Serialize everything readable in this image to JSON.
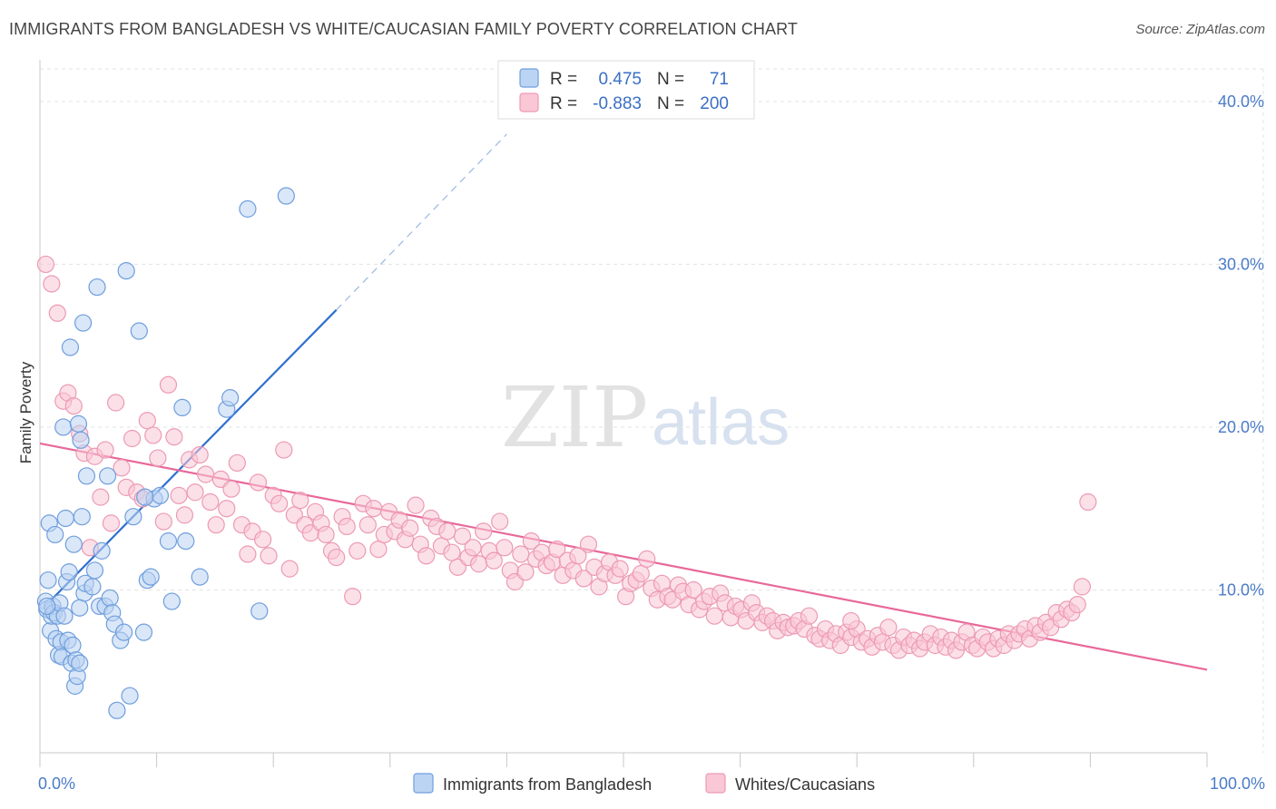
{
  "title": "IMMIGRANTS FROM BANGLADESH VS WHITE/CAUCASIAN FAMILY POVERTY CORRELATION CHART",
  "source": "Source: ZipAtlas.com",
  "watermark": {
    "part1": "ZIP",
    "part2": "atlas"
  },
  "colors": {
    "blue_fill": "#bcd4f3",
    "blue_stroke": "#6e9edd",
    "blue_line": "#2f6fcf",
    "pink_fill": "#f9c7d6",
    "pink_stroke": "#ec9ab4",
    "pink_line": "#e8689a",
    "grid": "#e3e3e3",
    "tick_text": "#4a7bc8"
  },
  "stats": {
    "r_label": "R =",
    "n_label": "N =",
    "blue": {
      "r": "0.475",
      "n": "71"
    },
    "pink": {
      "r": "-0.883",
      "n": "200"
    }
  },
  "chart_data": {
    "type": "scatter",
    "title": "IMMIGRANTS FROM BANGLADESH VS WHITE/CAUCASIAN FAMILY POVERTY CORRELATION CHART",
    "xlabel": "",
    "ylabel": "Family Poverty",
    "xlim": [
      0,
      100
    ],
    "ylim": [
      0,
      42
    ],
    "x_tick_labels": [
      "0.0%",
      "100.0%"
    ],
    "y_ticks": [
      10,
      20,
      30,
      40
    ],
    "y_tick_labels": [
      "10.0%",
      "20.0%",
      "30.0%",
      "40.0%"
    ],
    "grid": true,
    "legend_position": "bottom",
    "series": [
      {
        "name": "Immigrants from Bangladesh",
        "color": "#6e9edd",
        "trend": {
          "x": [
            0.3,
            25.4
          ],
          "y": [
            8.9,
            27.2
          ],
          "dashed_to": [
            40.0,
            38.0
          ]
        },
        "points": [
          [
            0.5,
            9.3
          ],
          [
            0.6,
            8.8
          ],
          [
            0.7,
            10.6
          ],
          [
            0.8,
            14.1
          ],
          [
            0.9,
            7.5
          ],
          [
            1.0,
            8.4
          ],
          [
            1.1,
            9.0
          ],
          [
            1.2,
            8.6
          ],
          [
            1.3,
            13.4
          ],
          [
            1.4,
            7.0
          ],
          [
            1.5,
            8.4
          ],
          [
            1.6,
            6.0
          ],
          [
            1.7,
            9.2
          ],
          [
            1.8,
            6.8
          ],
          [
            1.9,
            5.9
          ],
          [
            2.0,
            20.0
          ],
          [
            2.1,
            8.4
          ],
          [
            2.2,
            14.4
          ],
          [
            2.3,
            10.5
          ],
          [
            2.4,
            6.9
          ],
          [
            2.5,
            11.1
          ],
          [
            2.6,
            24.9
          ],
          [
            2.7,
            5.5
          ],
          [
            2.8,
            6.6
          ],
          [
            2.9,
            12.8
          ],
          [
            3.0,
            4.1
          ],
          [
            3.1,
            5.7
          ],
          [
            3.2,
            4.7
          ],
          [
            3.3,
            20.2
          ],
          [
            3.4,
            5.5
          ],
          [
            3.5,
            19.2
          ],
          [
            3.6,
            14.5
          ],
          [
            3.7,
            26.4
          ],
          [
            3.8,
            9.8
          ],
          [
            3.9,
            10.4
          ],
          [
            4.0,
            17.0
          ],
          [
            4.5,
            10.2
          ],
          [
            4.7,
            11.2
          ],
          [
            4.9,
            28.6
          ],
          [
            5.1,
            9.0
          ],
          [
            5.3,
            12.4
          ],
          [
            5.6,
            9.0
          ],
          [
            5.8,
            17.0
          ],
          [
            6.0,
            9.5
          ],
          [
            6.2,
            8.6
          ],
          [
            6.4,
            7.9
          ],
          [
            6.6,
            2.6
          ],
          [
            6.9,
            6.9
          ],
          [
            7.2,
            7.4
          ],
          [
            7.4,
            29.6
          ],
          [
            7.7,
            3.5
          ],
          [
            8.0,
            14.5
          ],
          [
            8.5,
            25.9
          ],
          [
            8.9,
            7.4
          ],
          [
            9.2,
            10.6
          ],
          [
            9.5,
            10.8
          ],
          [
            9.8,
            15.6
          ],
          [
            10.3,
            15.8
          ],
          [
            11.0,
            13.0
          ],
          [
            11.3,
            9.3
          ],
          [
            12.2,
            21.2
          ],
          [
            12.5,
            13.0
          ],
          [
            13.7,
            10.8
          ],
          [
            16.0,
            21.1
          ],
          [
            16.3,
            21.8
          ],
          [
            17.8,
            33.4
          ],
          [
            18.8,
            8.7
          ],
          [
            21.1,
            34.2
          ],
          [
            9.0,
            15.7
          ],
          [
            3.4,
            8.9
          ],
          [
            0.6,
            9.0
          ]
        ]
      },
      {
        "name": "Whites/Caucasians",
        "color": "#ec9ab4",
        "trend": {
          "x": [
            0.0,
            100.0
          ],
          "y": [
            19.0,
            5.1
          ]
        },
        "points": [
          [
            0.5,
            30.0
          ],
          [
            1.0,
            28.8
          ],
          [
            1.5,
            27.0
          ],
          [
            2.0,
            21.6
          ],
          [
            2.4,
            22.1
          ],
          [
            2.9,
            21.3
          ],
          [
            3.4,
            19.6
          ],
          [
            3.8,
            18.4
          ],
          [
            4.3,
            12.6
          ],
          [
            4.7,
            18.2
          ],
          [
            5.2,
            15.7
          ],
          [
            5.6,
            18.6
          ],
          [
            6.1,
            14.1
          ],
          [
            6.5,
            21.5
          ],
          [
            7.0,
            17.5
          ],
          [
            7.4,
            16.3
          ],
          [
            7.9,
            19.3
          ],
          [
            8.3,
            16.0
          ],
          [
            8.8,
            15.6
          ],
          [
            9.2,
            20.4
          ],
          [
            9.7,
            19.5
          ],
          [
            10.1,
            18.1
          ],
          [
            10.6,
            14.2
          ],
          [
            11.0,
            22.6
          ],
          [
            11.5,
            19.4
          ],
          [
            11.9,
            15.8
          ],
          [
            12.4,
            14.6
          ],
          [
            12.8,
            18.0
          ],
          [
            13.3,
            16.0
          ],
          [
            13.7,
            18.3
          ],
          [
            14.2,
            17.1
          ],
          [
            14.6,
            15.4
          ],
          [
            15.1,
            14.0
          ],
          [
            15.5,
            16.8
          ],
          [
            16.0,
            15.0
          ],
          [
            16.4,
            16.2
          ],
          [
            16.9,
            17.8
          ],
          [
            17.3,
            14.0
          ],
          [
            17.8,
            12.2
          ],
          [
            18.2,
            13.6
          ],
          [
            18.7,
            16.6
          ],
          [
            19.1,
            13.1
          ],
          [
            19.6,
            12.1
          ],
          [
            20.0,
            15.8
          ],
          [
            20.5,
            15.3
          ],
          [
            20.9,
            18.6
          ],
          [
            21.4,
            11.3
          ],
          [
            21.8,
            14.6
          ],
          [
            22.3,
            15.5
          ],
          [
            22.7,
            14.0
          ],
          [
            23.2,
            13.5
          ],
          [
            23.6,
            14.8
          ],
          [
            24.1,
            14.1
          ],
          [
            24.5,
            13.4
          ],
          [
            25.0,
            12.4
          ],
          [
            25.4,
            12.0
          ],
          [
            25.9,
            14.5
          ],
          [
            26.3,
            13.9
          ],
          [
            26.8,
            9.6
          ],
          [
            27.2,
            12.4
          ],
          [
            27.7,
            15.3
          ],
          [
            28.1,
            14.0
          ],
          [
            28.6,
            15.0
          ],
          [
            29.0,
            12.5
          ],
          [
            29.5,
            13.4
          ],
          [
            29.9,
            14.8
          ],
          [
            30.4,
            13.6
          ],
          [
            30.8,
            14.3
          ],
          [
            31.3,
            13.1
          ],
          [
            31.7,
            13.8
          ],
          [
            32.2,
            15.2
          ],
          [
            32.6,
            12.8
          ],
          [
            33.1,
            12.1
          ],
          [
            33.5,
            14.4
          ],
          [
            34.0,
            13.9
          ],
          [
            34.4,
            12.7
          ],
          [
            34.9,
            13.6
          ],
          [
            35.3,
            12.3
          ],
          [
            35.8,
            11.4
          ],
          [
            36.2,
            13.3
          ],
          [
            36.7,
            12.0
          ],
          [
            37.1,
            12.6
          ],
          [
            37.6,
            11.6
          ],
          [
            38.0,
            13.6
          ],
          [
            38.5,
            12.4
          ],
          [
            38.9,
            11.8
          ],
          [
            39.4,
            14.2
          ],
          [
            39.8,
            12.6
          ],
          [
            40.3,
            11.2
          ],
          [
            40.7,
            10.5
          ],
          [
            41.2,
            12.2
          ],
          [
            41.6,
            11.1
          ],
          [
            42.1,
            13.0
          ],
          [
            42.5,
            11.9
          ],
          [
            43.0,
            12.3
          ],
          [
            43.4,
            11.5
          ],
          [
            43.9,
            11.7
          ],
          [
            44.3,
            12.5
          ],
          [
            44.8,
            10.9
          ],
          [
            45.2,
            11.8
          ],
          [
            45.7,
            11.2
          ],
          [
            46.1,
            12.1
          ],
          [
            46.6,
            10.7
          ],
          [
            47.0,
            12.8
          ],
          [
            47.5,
            11.4
          ],
          [
            47.9,
            10.2
          ],
          [
            48.4,
            11.0
          ],
          [
            48.8,
            11.7
          ],
          [
            49.3,
            10.9
          ],
          [
            49.7,
            11.3
          ],
          [
            50.2,
            9.6
          ],
          [
            50.6,
            10.4
          ],
          [
            51.1,
            10.6
          ],
          [
            51.5,
            11.0
          ],
          [
            52.0,
            11.9
          ],
          [
            52.4,
            10.1
          ],
          [
            52.9,
            9.4
          ],
          [
            53.3,
            10.4
          ],
          [
            53.8,
            9.6
          ],
          [
            54.2,
            9.4
          ],
          [
            54.7,
            10.3
          ],
          [
            55.1,
            9.9
          ],
          [
            55.6,
            9.1
          ],
          [
            56.0,
            10.0
          ],
          [
            56.5,
            8.8
          ],
          [
            56.9,
            9.3
          ],
          [
            57.4,
            9.6
          ],
          [
            57.8,
            8.4
          ],
          [
            58.3,
            9.8
          ],
          [
            58.7,
            9.2
          ],
          [
            59.2,
            8.3
          ],
          [
            59.6,
            9.0
          ],
          [
            60.1,
            8.8
          ],
          [
            60.5,
            8.1
          ],
          [
            61.0,
            9.2
          ],
          [
            61.4,
            8.6
          ],
          [
            61.9,
            8.0
          ],
          [
            62.3,
            8.4
          ],
          [
            62.8,
            8.1
          ],
          [
            63.2,
            7.5
          ],
          [
            63.7,
            8.0
          ],
          [
            64.1,
            7.7
          ],
          [
            64.6,
            7.8
          ],
          [
            65.0,
            8.1
          ],
          [
            65.5,
            7.6
          ],
          [
            65.9,
            8.4
          ],
          [
            66.4,
            7.2
          ],
          [
            66.8,
            7.0
          ],
          [
            67.3,
            7.6
          ],
          [
            67.7,
            6.9
          ],
          [
            68.2,
            7.3
          ],
          [
            68.6,
            6.6
          ],
          [
            69.1,
            7.4
          ],
          [
            69.5,
            7.1
          ],
          [
            70.0,
            7.6
          ],
          [
            70.4,
            6.8
          ],
          [
            70.9,
            7.0
          ],
          [
            71.3,
            6.5
          ],
          [
            71.8,
            7.2
          ],
          [
            72.2,
            6.8
          ],
          [
            72.7,
            7.7
          ],
          [
            73.1,
            6.6
          ],
          [
            73.6,
            6.3
          ],
          [
            74.0,
            7.1
          ],
          [
            74.5,
            6.6
          ],
          [
            74.9,
            6.9
          ],
          [
            75.4,
            6.4
          ],
          [
            75.8,
            6.8
          ],
          [
            76.3,
            7.3
          ],
          [
            76.7,
            6.6
          ],
          [
            77.2,
            7.1
          ],
          [
            77.6,
            6.5
          ],
          [
            78.1,
            6.9
          ],
          [
            78.5,
            6.3
          ],
          [
            79.0,
            6.8
          ],
          [
            79.4,
            7.4
          ],
          [
            79.9,
            6.6
          ],
          [
            80.3,
            6.4
          ],
          [
            80.8,
            7.1
          ],
          [
            81.2,
            6.8
          ],
          [
            81.7,
            6.4
          ],
          [
            82.1,
            7.0
          ],
          [
            82.6,
            6.6
          ],
          [
            83.0,
            7.3
          ],
          [
            83.5,
            6.9
          ],
          [
            83.9,
            7.3
          ],
          [
            84.4,
            7.6
          ],
          [
            84.8,
            7.0
          ],
          [
            85.3,
            7.8
          ],
          [
            85.7,
            7.4
          ],
          [
            86.2,
            8.0
          ],
          [
            86.6,
            7.7
          ],
          [
            87.1,
            8.6
          ],
          [
            87.5,
            8.2
          ],
          [
            88.0,
            8.8
          ],
          [
            88.4,
            8.6
          ],
          [
            88.9,
            9.1
          ],
          [
            89.3,
            10.2
          ],
          [
            89.8,
            15.4
          ],
          [
            69.5,
            8.1
          ]
        ]
      }
    ]
  }
}
